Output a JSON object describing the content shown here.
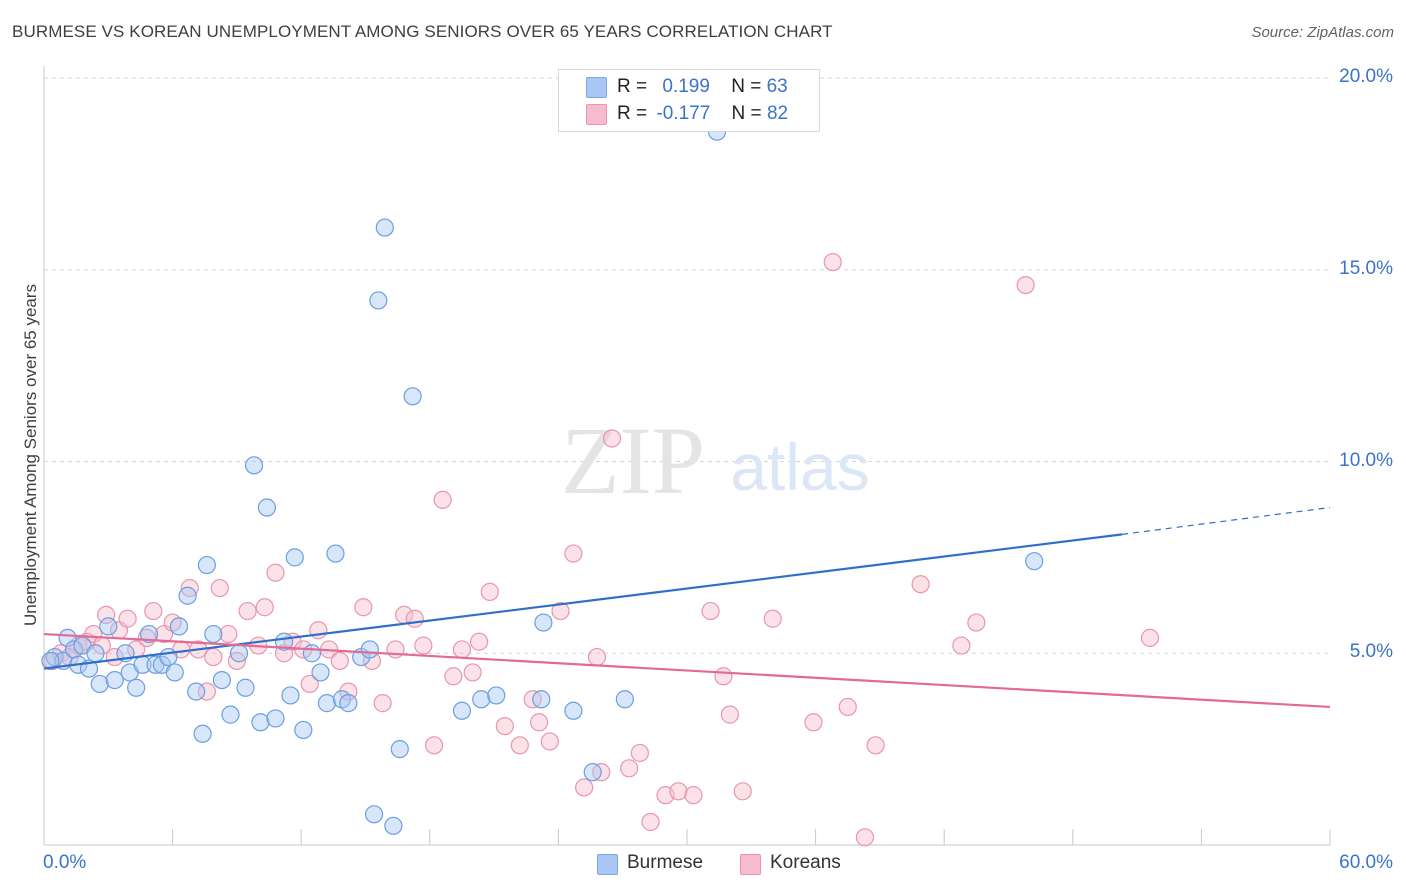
{
  "title": "BURMESE VS KOREAN UNEMPLOYMENT AMONG SENIORS OVER 65 YEARS CORRELATION CHART",
  "source": "Source: ZipAtlas.com",
  "watermark": {
    "zip": "ZIP",
    "atlas": "atlas"
  },
  "stats": [
    {
      "r_label": "R =",
      "r_value": "0.199",
      "n_label": "N =",
      "n_value": "63",
      "color": "#a9c7f2",
      "border": "#7aa6e3"
    },
    {
      "r_label": "R =",
      "r_value": "-0.177",
      "n_label": "N =",
      "n_value": "82",
      "color": "#f6bccd",
      "border": "#ec93ad"
    }
  ],
  "chart_data": {
    "type": "scatter",
    "title": "BURMESE VS KOREAN UNEMPLOYMENT AMONG SENIORS OVER 65 YEARS CORRELATION CHART",
    "ylabel": "Unemployment Among Seniors over 65 years",
    "xlabel": "",
    "xlim": [
      0,
      60
    ],
    "ylim": [
      0,
      20
    ],
    "x_tick_labels": {
      "min": "0.0%",
      "max": "60.0%"
    },
    "y_ticks": [
      {
        "value": 5,
        "label": "5.0%"
      },
      {
        "value": 10,
        "label": "10.0%"
      },
      {
        "value": 15,
        "label": "15.0%"
      },
      {
        "value": 20,
        "label": "20.0%"
      }
    ],
    "legend": [
      "Burmese",
      "Koreans"
    ],
    "series": [
      {
        "name": "Burmese",
        "color": "#a9c7f2",
        "stroke": "#6c9ee0",
        "trend_color": "#2f6fcc",
        "trend": {
          "x1": 0,
          "y1": 4.6,
          "x2": 50.3,
          "y2": 8.1,
          "dash_to_x": 60,
          "dash_to_y": 8.8
        },
        "points": [
          [
            0.5,
            4.9
          ],
          [
            0.9,
            4.8
          ],
          [
            1.1,
            5.4
          ],
          [
            1.4,
            5.1
          ],
          [
            1.6,
            4.7
          ],
          [
            1.8,
            5.2
          ],
          [
            2.1,
            4.6
          ],
          [
            2.4,
            5.0
          ],
          [
            2.6,
            4.2
          ],
          [
            3.0,
            5.7
          ],
          [
            3.3,
            4.3
          ],
          [
            3.8,
            5.0
          ],
          [
            4.0,
            4.5
          ],
          [
            4.3,
            4.1
          ],
          [
            4.6,
            4.7
          ],
          [
            4.9,
            5.5
          ],
          [
            5.2,
            4.7
          ],
          [
            5.5,
            4.7
          ],
          [
            5.8,
            4.9
          ],
          [
            6.1,
            4.5
          ],
          [
            6.3,
            5.7
          ],
          [
            6.7,
            6.5
          ],
          [
            7.1,
            4.0
          ],
          [
            7.4,
            2.9
          ],
          [
            7.6,
            7.3
          ],
          [
            7.9,
            5.5
          ],
          [
            8.3,
            4.3
          ],
          [
            8.7,
            3.4
          ],
          [
            9.1,
            5.0
          ],
          [
            9.4,
            4.1
          ],
          [
            9.8,
            9.9
          ],
          [
            10.1,
            3.2
          ],
          [
            10.4,
            8.8
          ],
          [
            10.8,
            3.3
          ],
          [
            11.2,
            5.3
          ],
          [
            11.5,
            3.9
          ],
          [
            11.7,
            7.5
          ],
          [
            12.1,
            3.0
          ],
          [
            12.5,
            5.0
          ],
          [
            12.9,
            4.5
          ],
          [
            13.2,
            3.7
          ],
          [
            13.6,
            7.6
          ],
          [
            13.9,
            3.8
          ],
          [
            14.2,
            3.7
          ],
          [
            14.8,
            4.9
          ],
          [
            15.2,
            5.1
          ],
          [
            15.4,
            0.8
          ],
          [
            15.6,
            14.2
          ],
          [
            15.9,
            16.1
          ],
          [
            16.3,
            0.5
          ],
          [
            16.6,
            2.5
          ],
          [
            17.2,
            11.7
          ],
          [
            19.5,
            3.5
          ],
          [
            20.4,
            3.8
          ],
          [
            21.1,
            3.9
          ],
          [
            23.2,
            3.8
          ],
          [
            23.3,
            5.8
          ],
          [
            24.7,
            3.5
          ],
          [
            25.6,
            1.9
          ],
          [
            27.1,
            3.8
          ],
          [
            31.4,
            18.6
          ],
          [
            46.2,
            7.4
          ],
          [
            0.3,
            4.8
          ]
        ]
      },
      {
        "name": "Koreans",
        "color": "#f6bccd",
        "stroke": "#e896ae",
        "trend_color": "#e26a95",
        "trend": {
          "x1": 0,
          "y1": 5.5,
          "x2": 60,
          "y2": 3.6
        },
        "points": [
          [
            0.4,
            4.8
          ],
          [
            0.8,
            5.0
          ],
          [
            1.2,
            4.9
          ],
          [
            1.6,
            5.2
          ],
          [
            2.0,
            5.3
          ],
          [
            2.3,
            5.5
          ],
          [
            2.7,
            5.2
          ],
          [
            2.9,
            6.0
          ],
          [
            3.3,
            4.9
          ],
          [
            3.5,
            5.6
          ],
          [
            3.9,
            5.9
          ],
          [
            4.3,
            5.1
          ],
          [
            4.8,
            5.4
          ],
          [
            5.1,
            6.1
          ],
          [
            5.6,
            5.5
          ],
          [
            6.0,
            5.8
          ],
          [
            6.4,
            5.1
          ],
          [
            6.8,
            6.7
          ],
          [
            7.2,
            5.1
          ],
          [
            7.6,
            4.0
          ],
          [
            7.9,
            4.9
          ],
          [
            8.2,
            6.7
          ],
          [
            8.6,
            5.5
          ],
          [
            9.0,
            4.8
          ],
          [
            9.5,
            6.1
          ],
          [
            10.0,
            5.2
          ],
          [
            10.3,
            6.2
          ],
          [
            10.8,
            7.1
          ],
          [
            11.2,
            5.0
          ],
          [
            11.6,
            5.3
          ],
          [
            12.1,
            5.1
          ],
          [
            12.4,
            4.2
          ],
          [
            12.8,
            5.6
          ],
          [
            13.3,
            5.1
          ],
          [
            13.8,
            4.8
          ],
          [
            14.2,
            4.0
          ],
          [
            14.9,
            6.2
          ],
          [
            15.3,
            4.8
          ],
          [
            15.8,
            3.7
          ],
          [
            16.4,
            5.1
          ],
          [
            16.8,
            6.0
          ],
          [
            17.3,
            5.9
          ],
          [
            17.7,
            5.2
          ],
          [
            18.2,
            2.6
          ],
          [
            18.6,
            9.0
          ],
          [
            19.1,
            4.4
          ],
          [
            19.5,
            5.1
          ],
          [
            20.0,
            4.5
          ],
          [
            20.3,
            5.3
          ],
          [
            20.8,
            6.6
          ],
          [
            21.5,
            3.1
          ],
          [
            22.2,
            2.6
          ],
          [
            22.8,
            3.8
          ],
          [
            23.1,
            3.2
          ],
          [
            23.6,
            2.7
          ],
          [
            24.1,
            6.1
          ],
          [
            24.7,
            7.6
          ],
          [
            25.2,
            1.5
          ],
          [
            25.8,
            4.9
          ],
          [
            26.0,
            1.9
          ],
          [
            26.5,
            10.6
          ],
          [
            27.3,
            2.0
          ],
          [
            27.8,
            2.4
          ],
          [
            28.3,
            0.6
          ],
          [
            29.0,
            1.3
          ],
          [
            29.6,
            1.4
          ],
          [
            30.3,
            1.3
          ],
          [
            31.1,
            6.1
          ],
          [
            31.7,
            4.4
          ],
          [
            32.0,
            3.4
          ],
          [
            32.6,
            1.4
          ],
          [
            34.0,
            5.9
          ],
          [
            35.9,
            3.2
          ],
          [
            36.8,
            15.2
          ],
          [
            37.5,
            3.6
          ],
          [
            38.3,
            0.2
          ],
          [
            38.8,
            2.6
          ],
          [
            40.9,
            6.8
          ],
          [
            42.8,
            5.2
          ],
          [
            43.5,
            5.8
          ],
          [
            45.8,
            14.6
          ],
          [
            51.6,
            5.4
          ]
        ]
      }
    ]
  }
}
